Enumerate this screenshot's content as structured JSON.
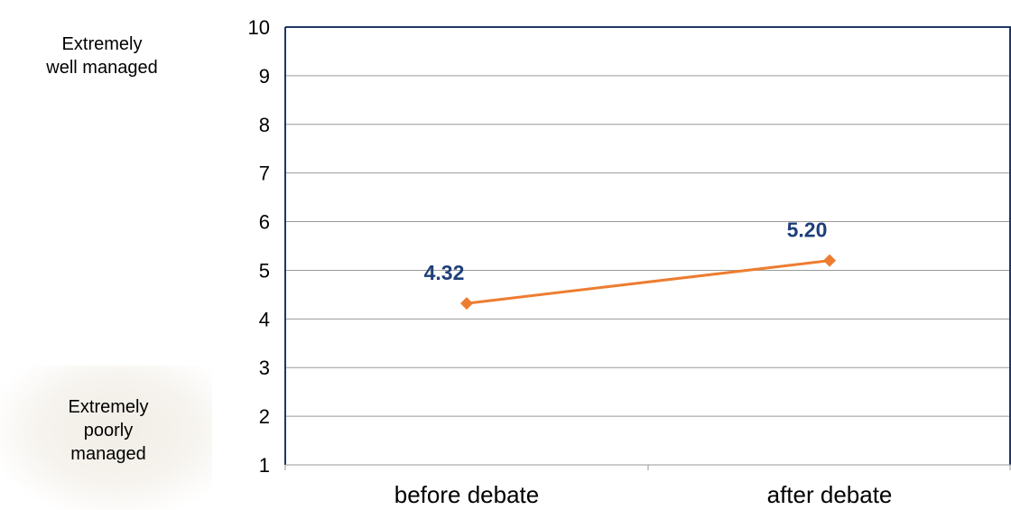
{
  "annotations": {
    "top": "Extremely\nwell managed",
    "bottom": "Extremely\npoorly\nmanaged"
  },
  "colors": {
    "line": "#ed7d31",
    "label": "#1f3f7a",
    "frame": "#1f3864",
    "grid": "#9a9a9a"
  },
  "chart_data": {
    "type": "line",
    "categories": [
      "before debate",
      "after debate"
    ],
    "series": [
      {
        "values": [
          4.32,
          5.2
        ],
        "labels": [
          "4.32",
          "5.20"
        ]
      }
    ],
    "ylim": [
      1,
      10
    ],
    "yticks": [
      1,
      2,
      3,
      4,
      5,
      6,
      7,
      8,
      9,
      10
    ],
    "grid": true,
    "legend": "none",
    "title": "",
    "xlabel": "",
    "ylabel": ""
  }
}
